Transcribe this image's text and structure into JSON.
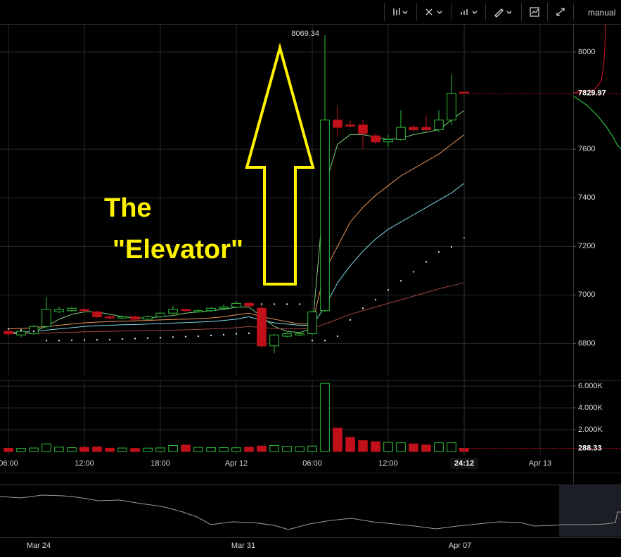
{
  "chart_data": {
    "type": "candlestick",
    "toolbar_label": "manual",
    "annotation": [
      "The",
      "\"Elevator\""
    ],
    "countdown_label": "24:12",
    "xlim": [
      -0.667,
      44.611
    ],
    "xticks": [
      {
        "value": 0,
        "label": "06:00"
      },
      {
        "value": 6,
        "label": "12:00"
      },
      {
        "value": 12,
        "label": "18:00"
      },
      {
        "value": 18,
        "label": "Apr 12"
      },
      {
        "value": 24,
        "label": "06:00"
      },
      {
        "value": 30,
        "label": "12:00"
      },
      {
        "value": 42,
        "label": "Apr 13"
      }
    ],
    "ylim": [
      6665,
      8113
    ],
    "yticks": [
      6800,
      7000,
      7200,
      7400,
      7600,
      8000
    ],
    "grid": true,
    "up_color": "#2fbf3a",
    "down_color": "#c0101a",
    "open": [
      6850,
      6835,
      6840,
      6870,
      6930,
      6935,
      6940,
      6930,
      6910,
      6905,
      6910,
      6900,
      6910,
      6925,
      6940,
      6930,
      6935,
      6945,
      6950,
      6965,
      6945,
      6790,
      6830,
      6835,
      6840,
      6935,
      7720,
      7700,
      7700,
      7655,
      7630,
      7640,
      7690,
      7690,
      7680,
      7720,
      7835
    ],
    "high": [
      6860,
      6860,
      6875,
      6990,
      6950,
      6950,
      6945,
      6935,
      6915,
      6915,
      6915,
      6915,
      6930,
      6955,
      6945,
      6940,
      6950,
      6960,
      6975,
      6970,
      6955,
      6840,
      6845,
      6845,
      6935,
      8069.34,
      7780,
      7720,
      7720,
      7665,
      7660,
      7760,
      7700,
      7740,
      7760,
      7910,
      7840
    ],
    "low": [
      6830,
      6825,
      6835,
      6860,
      6925,
      6930,
      6930,
      6905,
      6900,
      6900,
      6895,
      6895,
      6905,
      6920,
      6930,
      6925,
      6930,
      6940,
      6945,
      6950,
      6780,
      6760,
      6825,
      6830,
      6835,
      6930,
      7650,
      7690,
      7600,
      7620,
      7610,
      7635,
      7670,
      7670,
      7670,
      7700,
      7740
    ],
    "close": [
      6840,
      6850,
      6870,
      6940,
      6940,
      6945,
      6935,
      6910,
      6905,
      6910,
      6900,
      6910,
      6925,
      6940,
      6935,
      6935,
      6945,
      6950,
      6965,
      6955,
      6790,
      6835,
      6840,
      6840,
      6930,
      7720,
      7690,
      7695,
      7665,
      7630,
      7640,
      7690,
      7680,
      7680,
      7720,
      7830,
      7829.97
    ],
    "lines": [
      {
        "color": "#7ed07e",
        "values": [
          6845,
          6845,
          6850,
          6870,
          6900,
          6920,
          6930,
          6930,
          6920,
          6910,
          6905,
          6905,
          6910,
          6915,
          6925,
          6930,
          6935,
          6940,
          6950,
          6950,
          6910,
          6870,
          6850,
          6845,
          6860,
          7450,
          7620,
          7660,
          7660,
          7650,
          7640,
          7645,
          7660,
          7670,
          7680,
          7720,
          7760
        ]
      },
      {
        "color": "#e8955a",
        "values": [
          6860,
          6862,
          6865,
          6870,
          6875,
          6880,
          6885,
          6888,
          6890,
          6892,
          6893,
          6895,
          6897,
          6899,
          6900,
          6902,
          6905,
          6910,
          6918,
          6925,
          6910,
          6900,
          6890,
          6880,
          6880,
          7100,
          7200,
          7300,
          7360,
          7410,
          7450,
          7490,
          7520,
          7550,
          7580,
          7620,
          7660
        ]
      },
      {
        "color": "#7fd8e6",
        "values": [
          6840,
          6845,
          6850,
          6855,
          6860,
          6865,
          6870,
          6873,
          6875,
          6877,
          6878,
          6880,
          6882,
          6884,
          6886,
          6888,
          6890,
          6895,
          6900,
          6910,
          6895,
          6885,
          6880,
          6875,
          6875,
          6950,
          7050,
          7120,
          7180,
          7230,
          7270,
          7300,
          7330,
          7360,
          7390,
          7420,
          7460
        ]
      },
      {
        "color": "#a04545",
        "values": [
          6840,
          6841,
          6842,
          6843,
          6845,
          6846,
          6848,
          6849,
          6850,
          6851,
          6852,
          6853,
          6854,
          6855,
          6856,
          6858,
          6860,
          6862,
          6865,
          6870,
          6866,
          6862,
          6860,
          6860,
          6862,
          6880,
          6900,
          6920,
          6935,
          6950,
          6965,
          6980,
          6995,
          7010,
          7025,
          7038,
          7050
        ]
      }
    ],
    "sar": {
      "color": "#dddddd",
      "values": [
        6860,
        6855,
        6850,
        6812,
        6812,
        6813,
        6814,
        6815,
        6816,
        6818,
        6820,
        6822,
        6824,
        6826,
        6828,
        6830,
        6833,
        6836,
        6840,
        6842,
        6962,
        6962,
        6962,
        6962,
        6812,
        6812,
        6830,
        6897,
        6945,
        6980,
        7020,
        7058,
        7095,
        7136,
        7177,
        7197,
        7235
      ]
    },
    "volume": {
      "ylim": [
        0,
        6258
      ],
      "yticks": [
        {
          "value": 6000,
          "label": "6.000K"
        },
        {
          "value": 4000,
          "label": "4.000K"
        },
        {
          "value": 2000,
          "label": "2.000K"
        }
      ],
      "values": [
        300,
        280,
        320,
        700,
        400,
        350,
        380,
        420,
        300,
        320,
        280,
        310,
        330,
        550,
        600,
        380,
        350,
        360,
        340,
        400,
        500,
        550,
        480,
        450,
        500,
        6250,
        2150,
        1300,
        1000,
        900,
        850,
        800,
        700,
        600,
        800,
        800,
        288.33
      ]
    },
    "navigator_ticks": [
      "Mar 24",
      "Mar 31",
      "Apr 07"
    ]
  }
}
